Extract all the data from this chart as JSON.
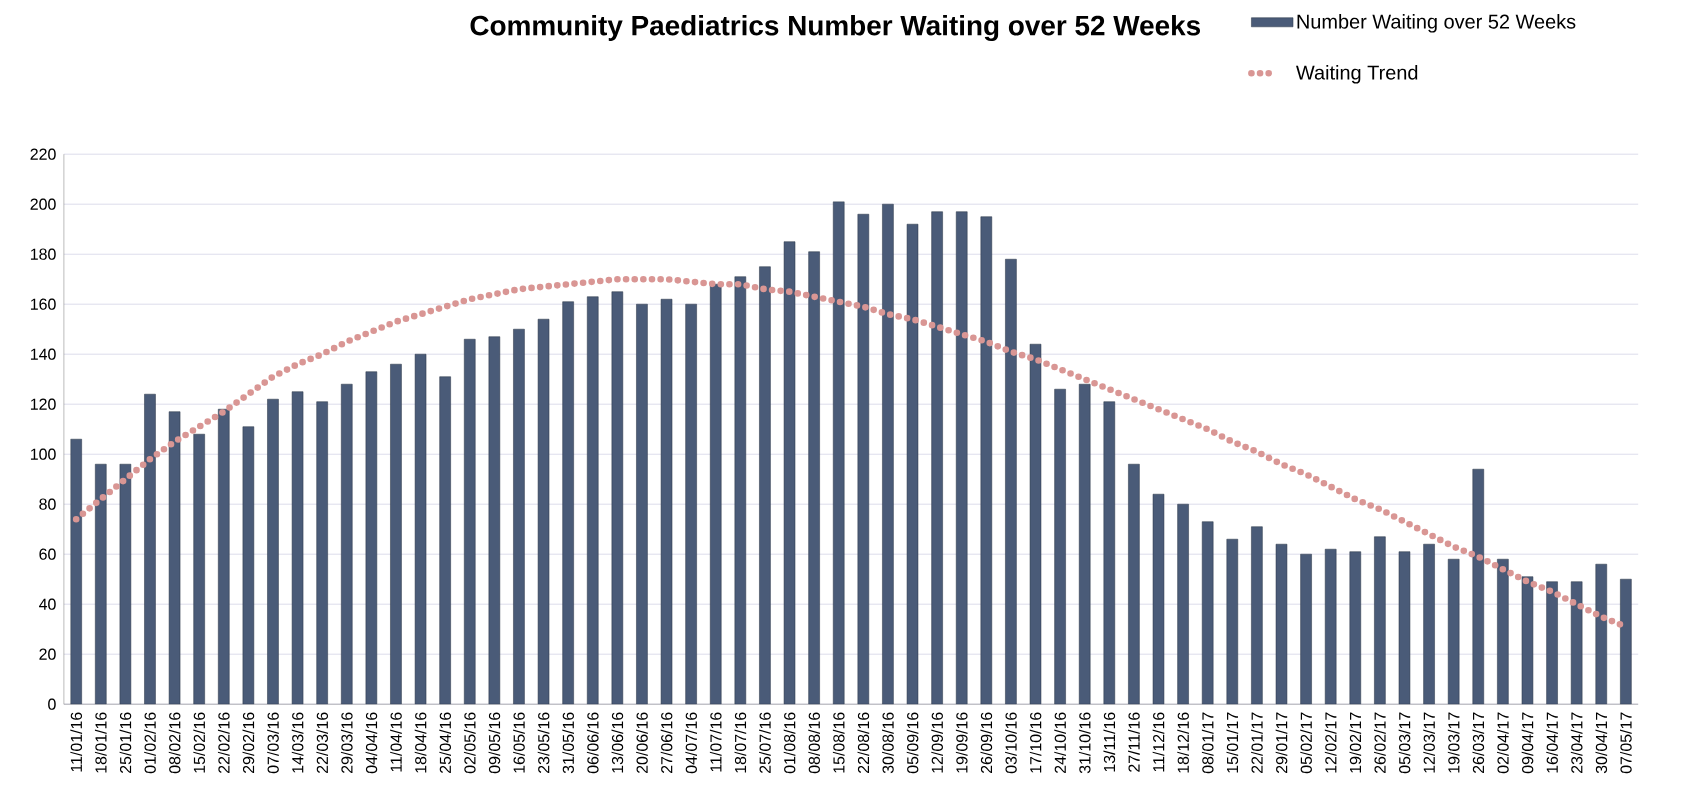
{
  "chart_data": {
    "type": "bar",
    "title": "Community Paediatrics Number Waiting over 52 Weeks",
    "categories": [
      "11/01/16",
      "18/01/16",
      "25/01/16",
      "01/02/16",
      "08/02/16",
      "15/02/16",
      "22/02/16",
      "29/02/16",
      "07/03/16",
      "14/03/16",
      "22/03/16",
      "29/03/16",
      "04/04/16",
      "11/04/16",
      "18/04/16",
      "25/04/16",
      "02/05/16",
      "09/05/16",
      "16/05/16",
      "23/05/16",
      "31/05/16",
      "06/06/16",
      "13/06/16",
      "20/06/16",
      "27/06/16",
      "04/07/16",
      "11/07/16",
      "18/07/16",
      "25/07/16",
      "01/08/16",
      "08/08/16",
      "15/08/16",
      "22/08/16",
      "30/08/16",
      "05/09/16",
      "12/09/16",
      "19/09/16",
      "26/09/16",
      "03/10/16",
      "17/10/16",
      "24/10/16",
      "31/10/16",
      "13/11/16",
      "27/11/16",
      "11/12/16",
      "18/12/16",
      "08/01/17",
      "15/01/17",
      "22/01/17",
      "29/01/17",
      "05/02/17",
      "12/02/17",
      "19/02/17",
      "26/02/17",
      "05/03/17",
      "12/03/17",
      "19/03/17",
      "26/03/17",
      "02/04/17",
      "09/04/17",
      "16/04/17",
      "23/04/17",
      "30/04/17",
      "07/05/17"
    ],
    "series": [
      {
        "name": "Number Waiting over 52 Weeks",
        "color": "#4a5b78",
        "values": [
          106,
          96,
          96,
          124,
          117,
          108,
          118,
          111,
          122,
          125,
          121,
          128,
          133,
          136,
          140,
          131,
          146,
          147,
          150,
          154,
          161,
          163,
          165,
          160,
          162,
          160,
          168,
          171,
          175,
          185,
          181,
          201,
          196,
          200,
          192,
          197,
          197,
          195,
          178,
          144,
          126,
          128,
          121,
          96,
          84,
          80,
          73,
          66,
          71,
          64,
          60,
          62,
          61,
          67,
          61,
          64,
          58,
          94,
          58,
          51,
          49,
          49,
          56,
          50
        ]
      },
      {
        "name": "Waiting Trend",
        "type": "line",
        "color": "#d99694",
        "line_style": "dotted",
        "values": [
          74,
          82,
          90,
          98,
          105,
          111,
          117,
          124,
          131,
          136,
          140,
          145,
          149,
          153,
          156,
          159,
          162,
          164,
          166,
          167,
          168,
          169,
          170,
          170,
          170,
          169,
          168,
          168,
          166,
          165,
          163,
          161,
          159,
          156,
          154,
          151,
          148,
          145,
          141,
          138,
          134,
          130,
          126,
          122,
          118,
          114,
          110,
          105,
          101,
          96,
          92,
          87,
          82,
          78,
          73,
          68,
          63,
          59,
          54,
          49,
          45,
          40,
          35,
          31
        ]
      }
    ],
    "ylim": [
      0,
      220
    ],
    "yticks": [
      0,
      20,
      40,
      60,
      80,
      100,
      120,
      140,
      160,
      180,
      200,
      220
    ],
    "grid": "y",
    "legend": "top right"
  }
}
